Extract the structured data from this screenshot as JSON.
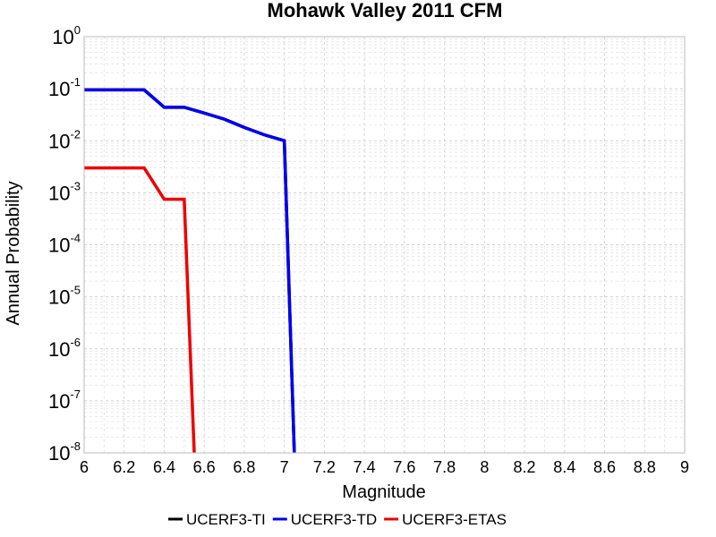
{
  "chart_data": {
    "type": "line",
    "title": "Mohawk Valley 2011 CFM",
    "xlabel": "Magnitude",
    "ylabel": "Annual Probability",
    "xlim": [
      6,
      9
    ],
    "ylim": [
      1e-08,
      1
    ],
    "yscale": "log",
    "grid": true,
    "legend_placement": "bottom",
    "x_ticks": [
      "6",
      "6.2",
      "6.4",
      "6.6",
      "6.8",
      "7",
      "7.2",
      "7.4",
      "7.6",
      "7.8",
      "8",
      "8.2",
      "8.4",
      "8.6",
      "8.8",
      "9"
    ],
    "y_ticks": [
      {
        "base": "10",
        "exp": "-8",
        "value": 1e-08
      },
      {
        "base": "10",
        "exp": "-7",
        "value": 1e-07
      },
      {
        "base": "10",
        "exp": "-6",
        "value": 1e-06
      },
      {
        "base": "10",
        "exp": "-5",
        "value": 1e-05
      },
      {
        "base": "10",
        "exp": "-4",
        "value": 0.0001
      },
      {
        "base": "10",
        "exp": "-3",
        "value": 0.001
      },
      {
        "base": "10",
        "exp": "-2",
        "value": 0.01
      },
      {
        "base": "10",
        "exp": "-1",
        "value": 0.1
      },
      {
        "base": "10",
        "exp": "0",
        "value": 1
      }
    ],
    "series": [
      {
        "name": "UCERF3-TI",
        "color": "#000000",
        "x": [
          6.0,
          6.3,
          6.4,
          6.5,
          6.6,
          6.7,
          6.8,
          6.9,
          7.0,
          7.05
        ],
        "y": [
          0.095,
          0.095,
          0.044,
          0.044,
          0.034,
          0.026,
          0.018,
          0.013,
          0.01,
          1e-08
        ]
      },
      {
        "name": "UCERF3-TD",
        "color": "#0000ee",
        "x": [
          6.0,
          6.3,
          6.4,
          6.5,
          6.6,
          6.7,
          6.8,
          6.9,
          7.0,
          7.05
        ],
        "y": [
          0.095,
          0.095,
          0.044,
          0.044,
          0.034,
          0.026,
          0.018,
          0.013,
          0.01,
          1e-08
        ]
      },
      {
        "name": "UCERF3-ETAS",
        "color": "#ee0000",
        "x": [
          6.0,
          6.3,
          6.4,
          6.5,
          6.55
        ],
        "y": [
          0.003,
          0.003,
          0.00075,
          0.00075,
          1e-08
        ]
      }
    ]
  }
}
